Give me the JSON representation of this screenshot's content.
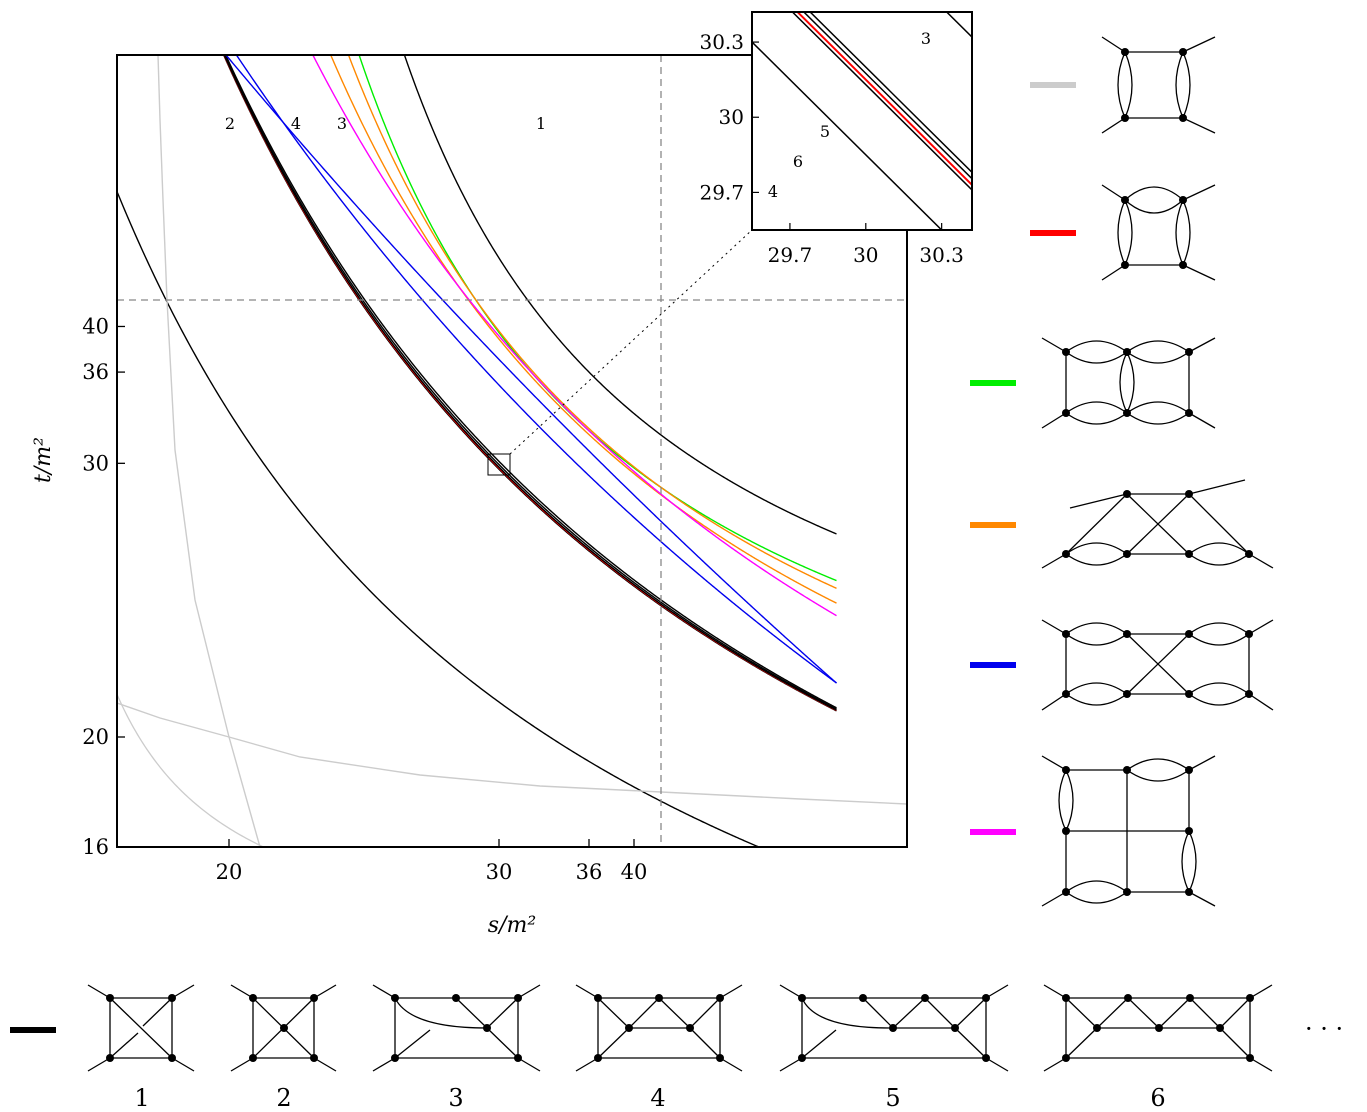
{
  "chart_data": {
    "type": "line",
    "xlabel": "s/m²",
    "ylabel": "t/m²",
    "xlim": [
      16,
      46
    ],
    "ylim": [
      16,
      45
    ],
    "x_ticks": [
      "20",
      "30",
      "36",
      "40"
    ],
    "y_ticks": [
      "16",
      "20",
      "30",
      "36",
      "40"
    ],
    "reference_lines": {
      "x": 36,
      "y": 36,
      "style": "dashed"
    },
    "series": [
      {
        "color": "#000000",
        "label": "1",
        "s_asym": 24,
        "t_asym": 24,
        "k": 144
      },
      {
        "color": "#000000",
        "label": "2",
        "s_asym": 16,
        "t_asym": 16,
        "k": 68.45
      },
      {
        "color": "#000000",
        "label": "3",
        "s_asym": 18.6,
        "t_asym": 18.6,
        "k": 131.2
      },
      {
        "color": "#000000",
        "label": "",
        "s_asym": 18.6,
        "t_asym": 18.6,
        "k": 129.2
      },
      {
        "color": "#000000",
        "label": "4",
        "s_asym": 18.6,
        "t_asym": 18.6,
        "k": 126.3
      },
      {
        "color": "#ff0000",
        "label": "",
        "s_asym": 18.6,
        "t_asym": 18.6,
        "k": 127.0
      },
      {
        "color": "#000000",
        "label": "",
        "s_asym": 18.6,
        "t_asym": 18.6,
        "k": 127.6
      },
      {
        "color": "#00ee00",
        "label": "",
        "s_asym": 22.5,
        "t_asym": 22.5,
        "k": 126.9
      },
      {
        "color": "#ff8800",
        "label": "",
        "s_asym": 22.0,
        "t_asym": 22.0,
        "k": 140.5
      },
      {
        "color": "#ff8800",
        "label": "",
        "s_asym": 21.3,
        "t_asym": 21.3,
        "k": 152.3
      },
      {
        "color": "#0000ee",
        "label": "",
        "s_asym": 18.2,
        "t_asym": 18.2,
        "k": 198.3
      },
      {
        "color": "#0000ee",
        "label": "",
        "s_asym": 17.5,
        "t_asym": 17.5,
        "k": 244.1
      },
      {
        "color": "#ff00ff",
        "label": "",
        "s_asym": 20.5,
        "t_asym": 20.5,
        "k": 176.6
      },
      {
        "color": "#cccccc",
        "label": "",
        "s_asym": 16.0,
        "t_asym": 16.0,
        "k": 8.0
      }
    ],
    "inset": {
      "xlim": [
        29.55,
        30.42
      ],
      "ylim": [
        29.55,
        30.42
      ],
      "ticks": [
        "29.7",
        "30",
        "30.3"
      ],
      "y_ticks": [
        "30.3",
        "30",
        "29.7"
      ],
      "lines": [
        {
          "label": "3",
          "sum": 60.74,
          "color": "#000000"
        },
        {
          "label": "5",
          "sum": 60.2,
          "color": "#000000"
        },
        {
          "label": "",
          "sum": 60.175,
          "color": "#000000"
        },
        {
          "label": "6",
          "sum": 60.15,
          "color": "#ff0000"
        },
        {
          "label": "",
          "sum": 60.13,
          "color": "#000000"
        },
        {
          "label": "4",
          "sum": 59.85,
          "color": "#000000"
        }
      ]
    }
  },
  "legend": [
    {
      "color": "#cccccc"
    },
    {
      "color": "#ff0000"
    },
    {
      "color": "#00ee00"
    },
    {
      "color": "#ff8800"
    },
    {
      "color": "#0000ee"
    },
    {
      "color": "#ff00ff"
    }
  ],
  "bottom_legend": {
    "color": "#000000",
    "labels": [
      "1",
      "2",
      "3",
      "4",
      "5",
      "6"
    ],
    "ellipsis": "· · ·"
  }
}
